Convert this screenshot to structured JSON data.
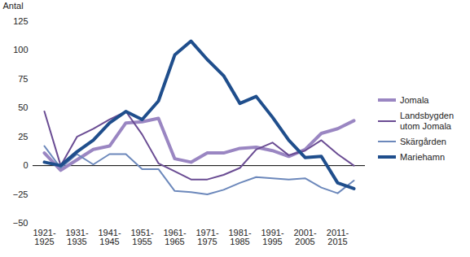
{
  "chart_data": {
    "type": "line",
    "y_label": "Antal",
    "categories": [
      "1921-1925",
      null,
      "1931-1935",
      null,
      "1941-1945",
      null,
      "1951-1955",
      null,
      "1961-1965",
      null,
      "1971-1975",
      null,
      "1981-1985",
      null,
      "1991-1995",
      null,
      "2001-2005",
      null,
      "2011-2015",
      null
    ],
    "series": [
      {
        "name": "Jomala",
        "color": "#9a86c2",
        "values": [
          11,
          -4,
          5,
          14,
          17,
          37,
          38,
          41,
          6,
          3,
          11,
          11,
          15,
          16,
          13,
          8,
          14,
          28,
          32,
          39
        ]
      },
      {
        "name": "Landsbygden utom Jomala",
        "color": "#6a4c93",
        "values": [
          47,
          0,
          25,
          32,
          40,
          47,
          27,
          2,
          -5,
          -12,
          -12,
          -8,
          -2,
          14,
          20,
          9,
          13,
          22,
          10,
          0
        ]
      },
      {
        "name": "Skärgården",
        "color": "#6c88bb",
        "values": [
          17,
          -2,
          10,
          1,
          10,
          10,
          -3,
          -3,
          -22,
          -23,
          -25,
          -21,
          -15,
          -10,
          -11,
          -12,
          -11,
          -19,
          -24,
          -13
        ]
      },
      {
        "name": "Mariehamn",
        "color": "#1f4e8c",
        "values": [
          3,
          0,
          12,
          22,
          37,
          47,
          40,
          56,
          96,
          108,
          92,
          78,
          54,
          60,
          42,
          22,
          7,
          8,
          -15,
          -20
        ]
      }
    ],
    "ylim": [
      -50,
      125
    ],
    "yticks": [
      -50,
      -25,
      0,
      25,
      50,
      75,
      100,
      125
    ],
    "grid": false,
    "legend": "right"
  }
}
